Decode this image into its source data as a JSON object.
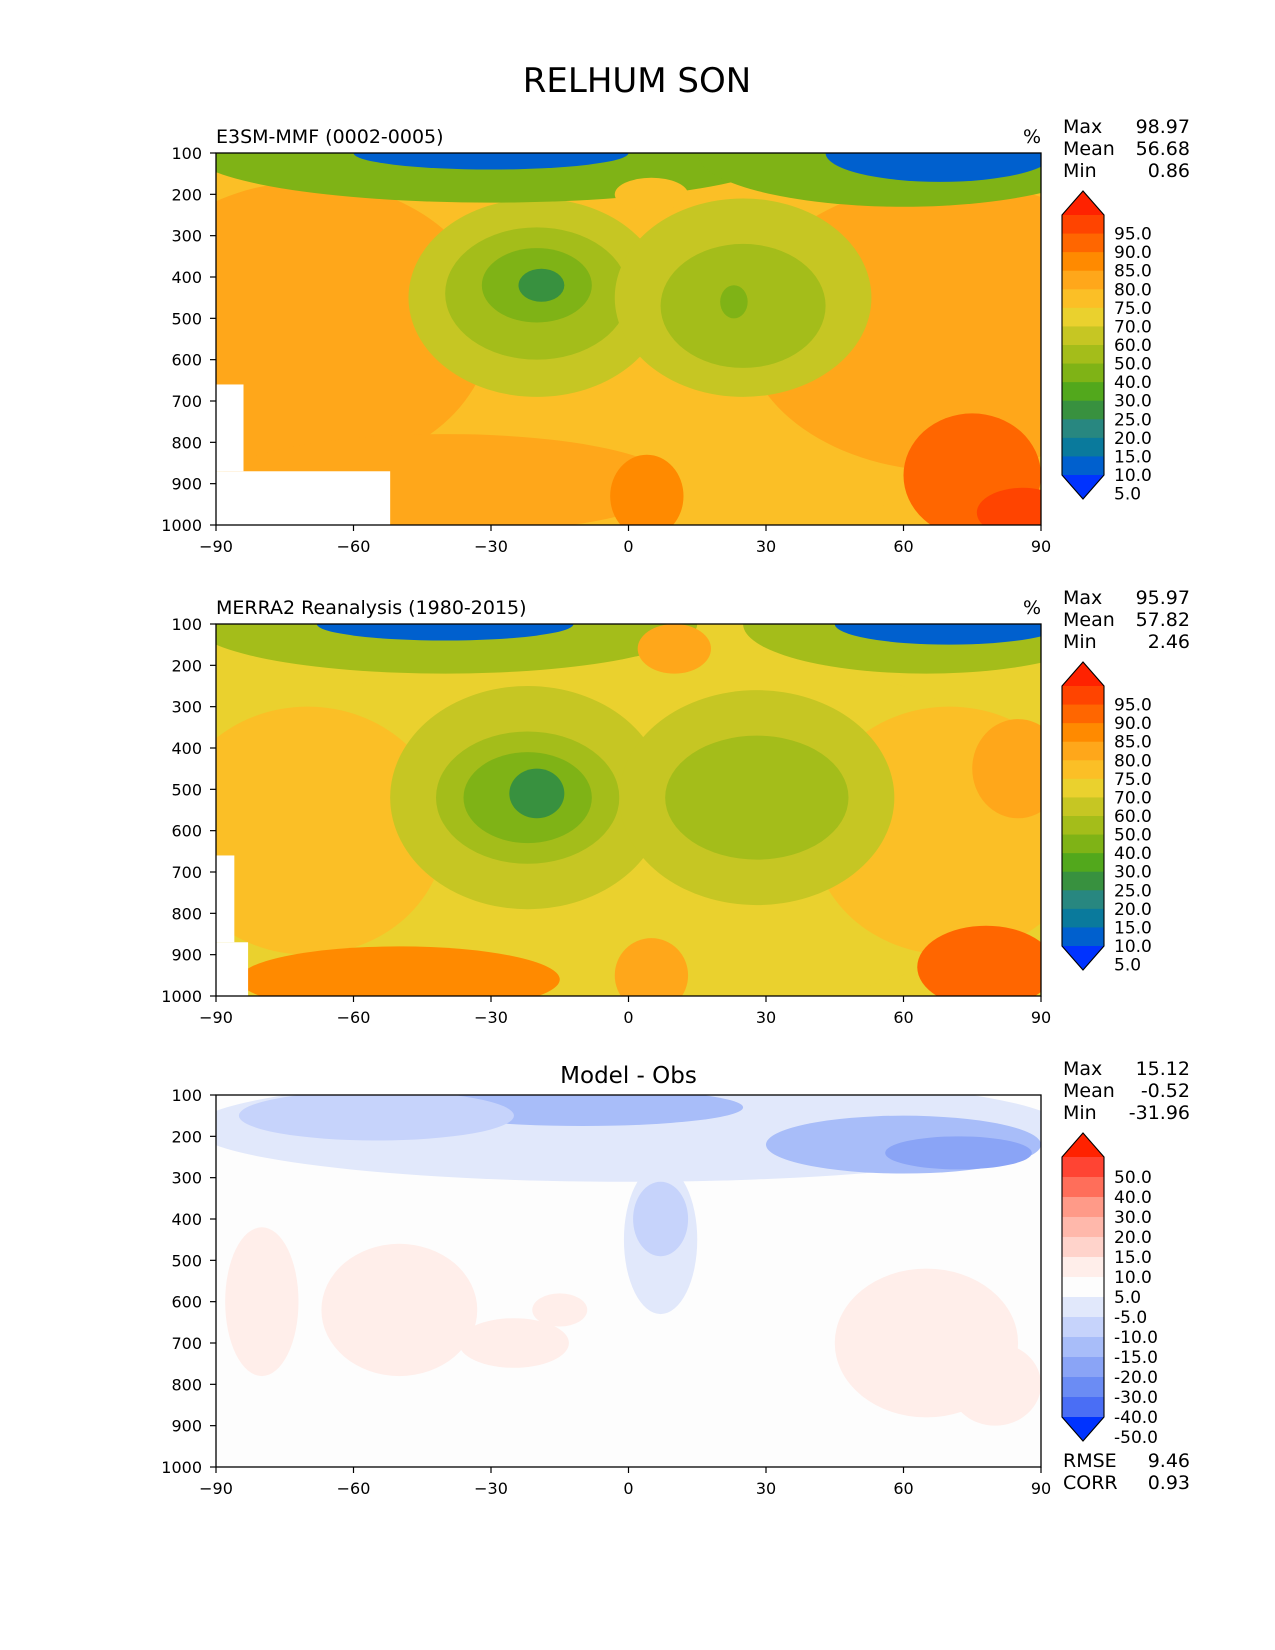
{
  "figure_title": "RELHUM SON",
  "colorbars": {
    "rh_levels": [
      "95.0",
      "90.0",
      "85.0",
      "80.0",
      "75.0",
      "70.0",
      "60.0",
      "50.0",
      "40.0",
      "30.0",
      "25.0",
      "20.0",
      "15.0",
      "10.0",
      "5.0"
    ],
    "rh_colors": [
      "#ff2200",
      "#ff4400",
      "#ff6600",
      "#ff8a00",
      "#ffa71a",
      "#fbbf26",
      "#ead12e",
      "#c6c623",
      "#a4bd1a",
      "#7fb316",
      "#52a81c",
      "#38913f",
      "#288780",
      "#0a7a9c",
      "#0060ce",
      "#0033ff"
    ],
    "diff_levels": [
      "50.0",
      "40.0",
      "30.0",
      "20.0",
      "15.0",
      "10.0",
      "5.0",
      "-5.0",
      "-10.0",
      "-15.0",
      "-20.0",
      "-30.0",
      "-40.0",
      "-50.0"
    ],
    "diff_colors": [
      "#ff2200",
      "#ff4433",
      "#ff6e5a",
      "#ff9a88",
      "#ffb8ab",
      "#ffd3cb",
      "#ffeeea",
      "#fdfdfd",
      "#e1e8fb",
      "#c6d3fb",
      "#a8bdf9",
      "#8aa4f6",
      "#6b8cf4",
      "#4a6ef5",
      "#0033ff"
    ]
  },
  "chart_data": [
    {
      "type": "contour",
      "title": "E3SM-MMF (0002-0005)",
      "units": "%",
      "stats": {
        "labels": [
          "Max",
          "Mean",
          "Min"
        ],
        "values": [
          "98.97",
          "56.68",
          "0.86"
        ]
      },
      "xlim": [
        -90,
        90
      ],
      "ylim": [
        1000,
        100
      ],
      "xticks": [
        "−90",
        "−60",
        "−30",
        "0",
        "30",
        "60",
        "90"
      ],
      "yticks": [
        "100",
        "200",
        "300",
        "400",
        "500",
        "600",
        "700",
        "800",
        "900",
        "1000"
      ],
      "colorbar": "rh",
      "features": [
        {
          "lat": 0,
          "p": 600,
          "rx": 90,
          "ry": 450,
          "value": 72
        },
        {
          "lat": -70,
          "p": 520,
          "rx": 40,
          "ry": 350,
          "value": 76
        },
        {
          "lat": 70,
          "p": 520,
          "rx": 45,
          "ry": 350,
          "value": 76
        },
        {
          "lat": -20,
          "p": 450,
          "rx": 28,
          "ry": 240,
          "value": 55
        },
        {
          "lat": -20,
          "p": 440,
          "rx": 20,
          "ry": 160,
          "value": 40
        },
        {
          "lat": -20,
          "p": 420,
          "rx": 12,
          "ry": 90,
          "value": 30
        },
        {
          "lat": -19,
          "p": 420,
          "rx": 5,
          "ry": 40,
          "value": 23
        },
        {
          "lat": 25,
          "p": 450,
          "rx": 28,
          "ry": 240,
          "value": 55
        },
        {
          "lat": 25,
          "p": 470,
          "rx": 18,
          "ry": 150,
          "value": 40
        },
        {
          "lat": 23,
          "p": 460,
          "rx": 3,
          "ry": 40,
          "value": 30
        },
        {
          "lat": -40,
          "p": 900,
          "rx": 50,
          "ry": 120,
          "value": 78
        },
        {
          "lat": 4,
          "p": 930,
          "rx": 8,
          "ry": 100,
          "value": 82
        },
        {
          "lat": 75,
          "p": 880,
          "rx": 15,
          "ry": 150,
          "value": 86
        },
        {
          "lat": 86,
          "p": 970,
          "rx": 10,
          "ry": 60,
          "value": 92
        },
        {
          "lat": -30,
          "p": 100,
          "rx": 65,
          "ry": 120,
          "value": 35
        },
        {
          "lat": -30,
          "p": 100,
          "rx": 30,
          "ry": 40,
          "value": 8
        },
        {
          "lat": 60,
          "p": 100,
          "rx": 45,
          "ry": 130,
          "value": 35
        },
        {
          "lat": 68,
          "p": 100,
          "rx": 25,
          "ry": 70,
          "value": 5
        },
        {
          "lat": 5,
          "p": 200,
          "rx": 8,
          "ry": 40,
          "value": 72
        }
      ],
      "missing": [
        {
          "lat": [
            -90,
            -52
          ],
          "p": [
            870,
            1000
          ]
        },
        {
          "lat": [
            -90,
            -84
          ],
          "p": [
            660,
            870
          ]
        }
      ]
    },
    {
      "type": "contour",
      "title": "MERRA2 Reanalysis (1980-2015)",
      "units": "%",
      "stats": {
        "labels": [
          "Max",
          "Mean",
          "Min"
        ],
        "values": [
          "95.97",
          "57.82",
          "2.46"
        ]
      },
      "xlim": [
        -90,
        90
      ],
      "ylim": [
        1000,
        100
      ],
      "xticks": [
        "−90",
        "−60",
        "−30",
        "0",
        "30",
        "60",
        "90"
      ],
      "yticks": [
        "100",
        "200",
        "300",
        "400",
        "500",
        "600",
        "700",
        "800",
        "900",
        "1000"
      ],
      "colorbar": "rh",
      "features": [
        {
          "lat": 0,
          "p": 600,
          "rx": 95,
          "ry": 450,
          "value": 68
        },
        {
          "lat": -70,
          "p": 600,
          "rx": 30,
          "ry": 300,
          "value": 71
        },
        {
          "lat": 70,
          "p": 600,
          "rx": 30,
          "ry": 300,
          "value": 71
        },
        {
          "lat": -22,
          "p": 520,
          "rx": 30,
          "ry": 270,
          "value": 55
        },
        {
          "lat": -22,
          "p": 520,
          "rx": 20,
          "ry": 160,
          "value": 40
        },
        {
          "lat": -22,
          "p": 520,
          "rx": 14,
          "ry": 110,
          "value": 30
        },
        {
          "lat": -20,
          "p": 510,
          "rx": 6,
          "ry": 60,
          "value": 23
        },
        {
          "lat": 28,
          "p": 520,
          "rx": 30,
          "ry": 260,
          "value": 55
        },
        {
          "lat": 28,
          "p": 520,
          "rx": 20,
          "ry": 150,
          "value": 40
        },
        {
          "lat": -50,
          "p": 960,
          "rx": 35,
          "ry": 80,
          "value": 80
        },
        {
          "lat": 5,
          "p": 950,
          "rx": 8,
          "ry": 90,
          "value": 78
        },
        {
          "lat": 78,
          "p": 930,
          "rx": 15,
          "ry": 100,
          "value": 86
        },
        {
          "lat": 85,
          "p": 450,
          "rx": 10,
          "ry": 120,
          "value": 78
        },
        {
          "lat": -40,
          "p": 100,
          "rx": 55,
          "ry": 120,
          "value": 40
        },
        {
          "lat": -40,
          "p": 100,
          "rx": 28,
          "ry": 40,
          "value": 8
        },
        {
          "lat": 65,
          "p": 100,
          "rx": 40,
          "ry": 120,
          "value": 40
        },
        {
          "lat": 70,
          "p": 100,
          "rx": 25,
          "ry": 50,
          "value": 5
        },
        {
          "lat": 10,
          "p": 160,
          "rx": 8,
          "ry": 60,
          "value": 77
        }
      ],
      "missing": [
        {
          "lat": [
            -90,
            -83
          ],
          "p": [
            870,
            1000
          ]
        },
        {
          "lat": [
            -90,
            -86
          ],
          "p": [
            660,
            870
          ]
        }
      ]
    },
    {
      "type": "contour",
      "title": "Model - Obs",
      "units": "",
      "stats": {
        "labels": [
          "Max",
          "Mean",
          "Min"
        ],
        "values": [
          "15.12",
          "-0.52",
          "-31.96"
        ]
      },
      "extra_stats": {
        "labels": [
          "RMSE",
          "CORR"
        ],
        "values": [
          "9.46",
          "0.93"
        ]
      },
      "xlim": [
        -90,
        90
      ],
      "ylim": [
        1000,
        100
      ],
      "xticks": [
        "−90",
        "−60",
        "−30",
        "0",
        "30",
        "60",
        "90"
      ],
      "yticks": [
        "100",
        "200",
        "300",
        "400",
        "500",
        "600",
        "700",
        "800",
        "900",
        "1000"
      ],
      "colorbar": "diff",
      "features": [
        {
          "lat": 0,
          "p": 180,
          "rx": 95,
          "ry": 130,
          "value": -8
        },
        {
          "lat": -10,
          "p": 130,
          "rx": 35,
          "ry": 45,
          "value": -18
        },
        {
          "lat": 60,
          "p": 220,
          "rx": 30,
          "ry": 70,
          "value": -18
        },
        {
          "lat": 72,
          "p": 240,
          "rx": 16,
          "ry": 40,
          "value": -25
        },
        {
          "lat": -55,
          "p": 150,
          "rx": 30,
          "ry": 60,
          "value": -12
        },
        {
          "lat": 7,
          "p": 450,
          "rx": 8,
          "ry": 180,
          "value": -8
        },
        {
          "lat": 7,
          "p": 400,
          "rx": 6,
          "ry": 90,
          "value": -12
        },
        {
          "lat": -50,
          "p": 620,
          "rx": 17,
          "ry": 160,
          "value": 7
        },
        {
          "lat": -80,
          "p": 600,
          "rx": 8,
          "ry": 180,
          "value": 6
        },
        {
          "lat": 65,
          "p": 700,
          "rx": 20,
          "ry": 180,
          "value": 7
        },
        {
          "lat": 80,
          "p": 800,
          "rx": 10,
          "ry": 100,
          "value": 7
        },
        {
          "lat": -25,
          "p": 700,
          "rx": 12,
          "ry": 60,
          "value": 6
        },
        {
          "lat": -15,
          "p": 620,
          "rx": 6,
          "ry": 40,
          "value": 6
        }
      ],
      "missing": []
    }
  ]
}
